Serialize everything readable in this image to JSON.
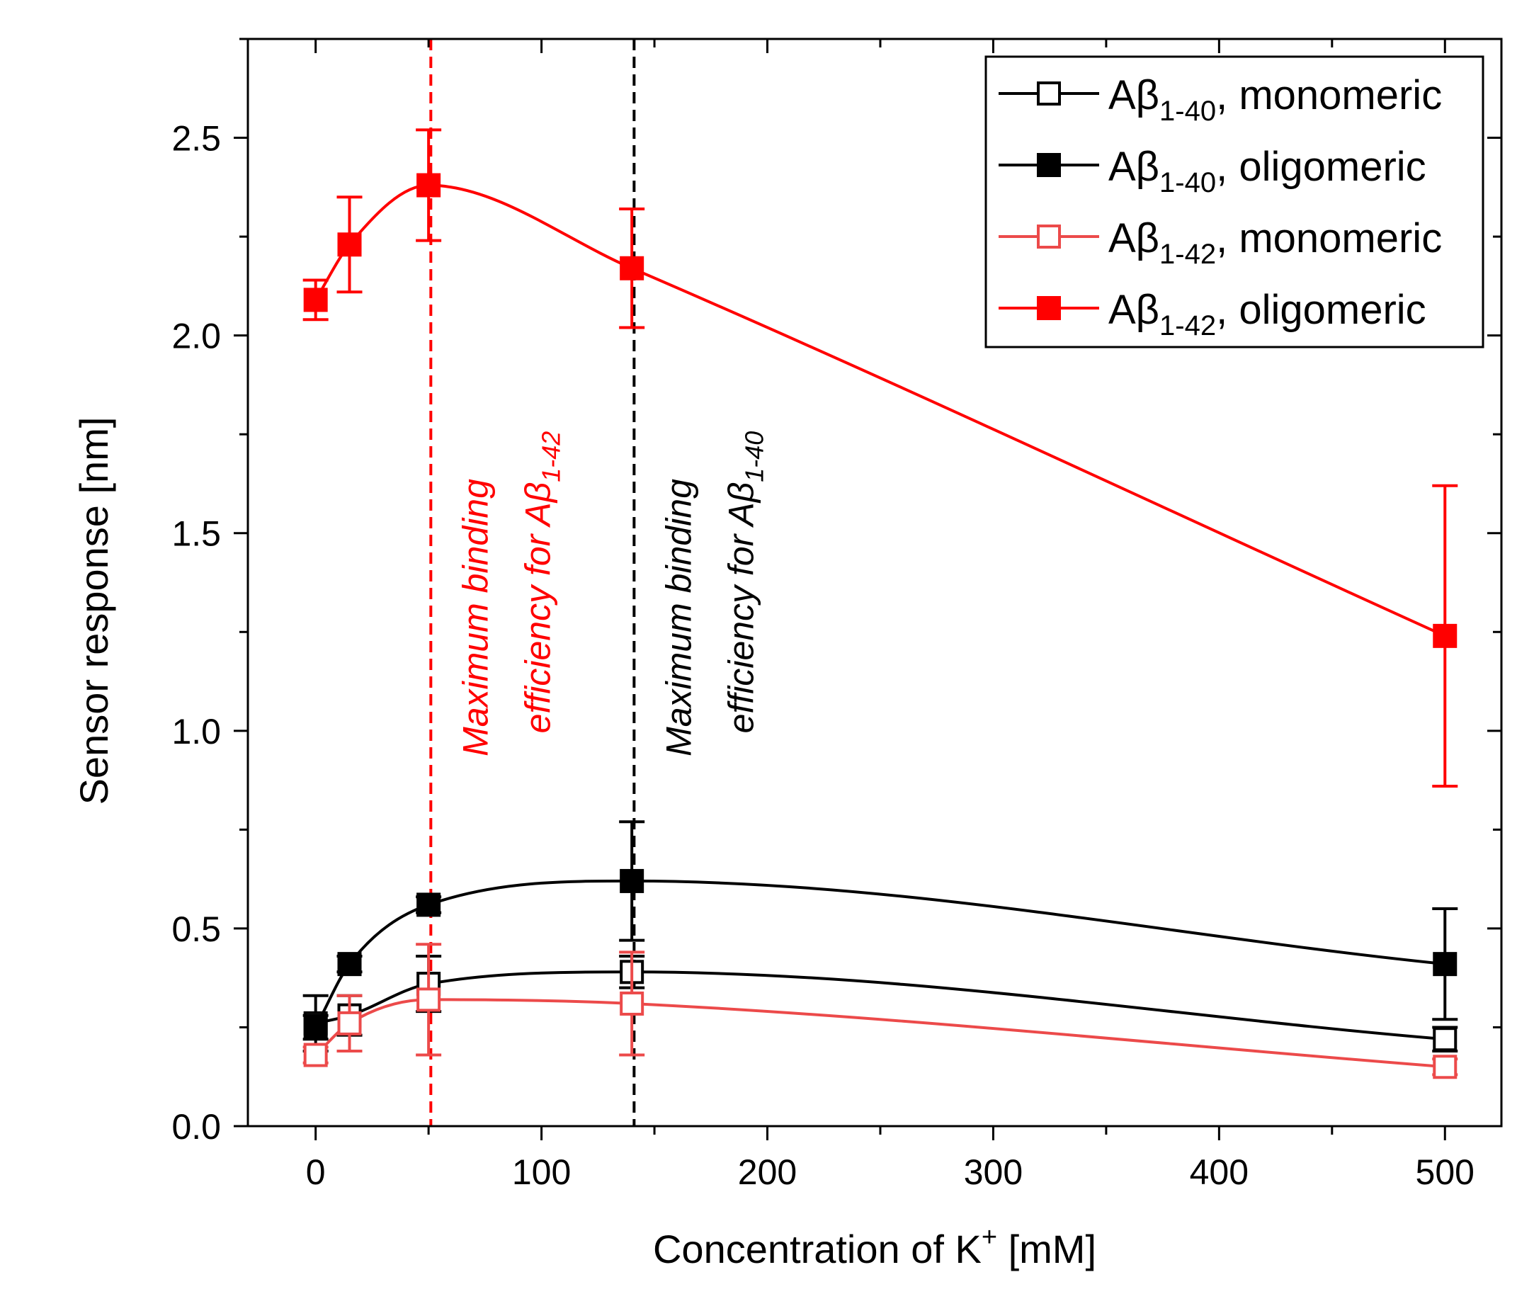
{
  "chart_data": {
    "type": "line",
    "title": "",
    "xlabel": {
      "text": "Concentration of K",
      "sup": "+",
      "suffix": " [mM]"
    },
    "ylabel": "Sensor response [nm]",
    "xlim": [
      -30,
      525
    ],
    "ylim": [
      0.0,
      2.75
    ],
    "xticks": [
      0,
      100,
      200,
      300,
      400,
      500
    ],
    "xtick_labels": [
      "0",
      "100",
      "200",
      "300",
      "400",
      "500"
    ],
    "xminor": [
      50,
      150,
      250,
      350,
      450
    ],
    "yticks": [
      0.0,
      0.5,
      1.0,
      1.5,
      2.0,
      2.5
    ],
    "ytick_labels": [
      "0.0",
      "0.5",
      "1.0",
      "1.5",
      "2.0",
      "2.5"
    ],
    "yminor": [
      0.25,
      0.75,
      1.25,
      1.75,
      2.25,
      2.75
    ],
    "grid": false,
    "legend_position": "top-right",
    "x": [
      0,
      15,
      50,
      140,
      500
    ],
    "series": [
      {
        "name": "Aβ1-40, monomeric",
        "legend": {
          "base": "Aβ",
          "sub": "1-40",
          "suffix": ", monomeric"
        },
        "color": "#000000",
        "marker": "open-square",
        "values": [
          0.26,
          0.28,
          0.36,
          0.39,
          0.22
        ],
        "errors": [
          0.07,
          0.05,
          0.07,
          0.04,
          0.03
        ]
      },
      {
        "name": "Aβ1-40, oligomeric",
        "legend": {
          "base": "Aβ",
          "sub": "1-40",
          "suffix": ", oligomeric"
        },
        "color": "#000000",
        "marker": "filled-square",
        "values": [
          0.25,
          0.41,
          0.56,
          0.62,
          0.41
        ],
        "errors": [
          0.03,
          0.02,
          0.02,
          0.15,
          0.14
        ]
      },
      {
        "name": "Aβ1-42, monomeric",
        "legend": {
          "base": "Aβ",
          "sub": "1-42",
          "suffix": ", monomeric"
        },
        "color": "#ec4a4a",
        "marker": "open-square",
        "values": [
          0.18,
          0.26,
          0.32,
          0.31,
          0.15
        ],
        "errors": [
          0.02,
          0.07,
          0.14,
          0.13,
          0.02
        ]
      },
      {
        "name": "Aβ1-42, oligomeric",
        "legend": {
          "base": "Aβ",
          "sub": "1-42",
          "suffix": ", oligomeric"
        },
        "color": "#ff0000",
        "marker": "filled-square",
        "values": [
          2.09,
          2.23,
          2.38,
          2.17,
          1.24
        ],
        "errors": [
          0.05,
          0.12,
          0.14,
          0.15,
          0.38
        ]
      }
    ],
    "annotations": [
      {
        "x": 51,
        "color": "#ff0000",
        "line1": "Maximum binding",
        "line2": "efficiency for  Aβ",
        "sub": "1-42"
      },
      {
        "x": 141,
        "color": "#000000",
        "line1": "Maximum binding",
        "line2": "efficiency for  Aβ",
        "sub": "1-40"
      }
    ]
  }
}
